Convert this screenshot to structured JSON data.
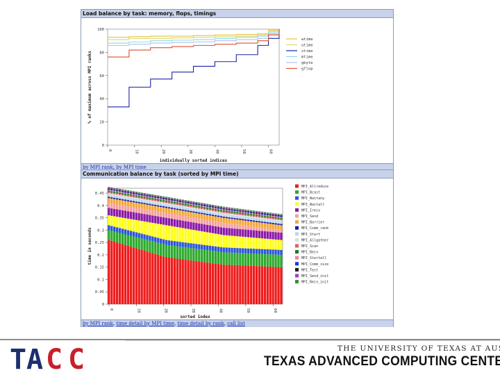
{
  "panel1": {
    "title": "Load balance by task: memory, flops, timings",
    "links": [
      "by MPI rank",
      "by MPI time"
    ]
  },
  "panel2": {
    "title": "Communication balance by task (sorted by MPI time)",
    "links": [
      "by MPI rank",
      "time detail by MPI time",
      "time detail by rank",
      "call list"
    ]
  },
  "footer": {
    "university": "THE UNIVERSITY OF TEXAS AT AUSTIN",
    "center": "TEXAS ADVANCED COMPUTING CENTER",
    "logo": "TACC"
  },
  "chart_data": [
    {
      "type": "line",
      "xlabel": "individually sorted indices",
      "ylabel": "% of maximum across MPI ranks",
      "xlim": [
        0,
        64
      ],
      "ylim": [
        0,
        100
      ],
      "xticks": [
        0,
        10,
        20,
        30,
        40,
        50,
        60
      ],
      "yticks": [
        0,
        20,
        40,
        60,
        80,
        100
      ],
      "x": [
        0,
        8,
        16,
        24,
        32,
        40,
        48,
        56,
        60,
        64
      ],
      "series": [
        {
          "name": "wtime",
          "color": "#e8c23a",
          "values": [
            93,
            93.5,
            94,
            94,
            94.5,
            95,
            95.5,
            96,
            99,
            100
          ]
        },
        {
          "name": "utime",
          "color": "#d9d96a",
          "values": [
            91,
            92,
            92,
            92.5,
            93,
            93.5,
            94,
            95,
            98,
            100
          ]
        },
        {
          "name": "stime",
          "color": "#1a22a6",
          "values": [
            33,
            50,
            57,
            63,
            68,
            72,
            78,
            86,
            92,
            100
          ]
        },
        {
          "name": "mtime",
          "color": "#8fd8e8",
          "values": [
            88,
            89,
            90,
            90.5,
            91,
            92,
            93,
            94,
            97,
            100
          ]
        },
        {
          "name": "gbyte",
          "color": "#a9c3f0",
          "values": [
            86,
            87,
            88,
            88.5,
            89,
            90,
            91,
            92,
            96,
            100
          ]
        },
        {
          "name": "gflop",
          "color": "#d9502e",
          "values": [
            76,
            82,
            84,
            85,
            86,
            87,
            88,
            90,
            95,
            100
          ]
        }
      ]
    },
    {
      "type": "bar",
      "xlabel": "sorted index",
      "ylabel": "time in seconds",
      "ylim": [
        0,
        0.47
      ],
      "yticks": [
        0,
        0.05,
        0.1,
        0.15,
        0.2,
        0.25,
        0.3,
        0.35,
        0.4,
        0.45
      ],
      "xticks": [
        0,
        10,
        20,
        30,
        40,
        50,
        60
      ],
      "bar_count": 64,
      "series": [
        {
          "name": "MPI_Allreduce",
          "color": "#ee1c1c",
          "values": [
            0.26,
            0.19,
            0.16,
            0.15
          ]
        },
        {
          "name": "MPI_Bcast",
          "color": "#2eaa2e",
          "values": [
            0.04,
            0.05,
            0.05,
            0.05
          ]
        },
        {
          "name": "MPI_Waitany",
          "color": "#2a56d8",
          "values": [
            0.02,
            0.02,
            0.02,
            0.02
          ]
        },
        {
          "name": "MPI_Waitall",
          "color": "#ffff1a",
          "values": [
            0.04,
            0.06,
            0.05,
            0.04
          ]
        },
        {
          "name": "MPI_Irecv",
          "color": "#8a1aa8",
          "values": [
            0.03,
            0.03,
            0.03,
            0.03
          ]
        },
        {
          "name": "MPI_Send",
          "color": "#f4a0a0",
          "values": [
            0.02,
            0.02,
            0.02,
            0.01
          ]
        },
        {
          "name": "MPI_Barrier",
          "color": "#f4a838",
          "values": [
            0.02,
            0.02,
            0.02,
            0.02
          ]
        },
        {
          "name": "MPI_Comm_rank",
          "color": "#1a1aa0",
          "values": [
            0.005,
            0.005,
            0.005,
            0.005
          ]
        },
        {
          "name": "MPI_Start",
          "color": "#b8d8f0",
          "values": [
            0.01,
            0.01,
            0.01,
            0.01
          ]
        },
        {
          "name": "MPI_Allgather",
          "color": "#dcdcdc",
          "values": [
            0.005,
            0.005,
            0.005,
            0.005
          ]
        },
        {
          "name": "MPI_Scan",
          "color": "#d96060",
          "values": [
            0.005,
            0.005,
            0.005,
            0.005
          ]
        },
        {
          "name": "MPI_Recv",
          "color": "#1a7a1a",
          "values": [
            0.005,
            0.005,
            0.005,
            0.005
          ]
        },
        {
          "name": "MPI_Startall",
          "color": "#f080a0",
          "values": [
            0.003,
            0.003,
            0.003,
            0.003
          ]
        },
        {
          "name": "MPI_Comm_size",
          "color": "#1a3ad0",
          "values": [
            0.003,
            0.003,
            0.003,
            0.003
          ]
        },
        {
          "name": "MPI_Test",
          "color": "#1a1a1a",
          "values": [
            0.003,
            0.003,
            0.003,
            0.003
          ]
        },
        {
          "name": "MPI_Send_init",
          "color": "#a040c0",
          "values": [
            0.003,
            0.003,
            0.003,
            0.003
          ]
        },
        {
          "name": "MPI_Recv_init",
          "color": "#3a8a3a",
          "values": [
            0.003,
            0.003,
            0.003,
            0.003
          ]
        }
      ]
    }
  ]
}
